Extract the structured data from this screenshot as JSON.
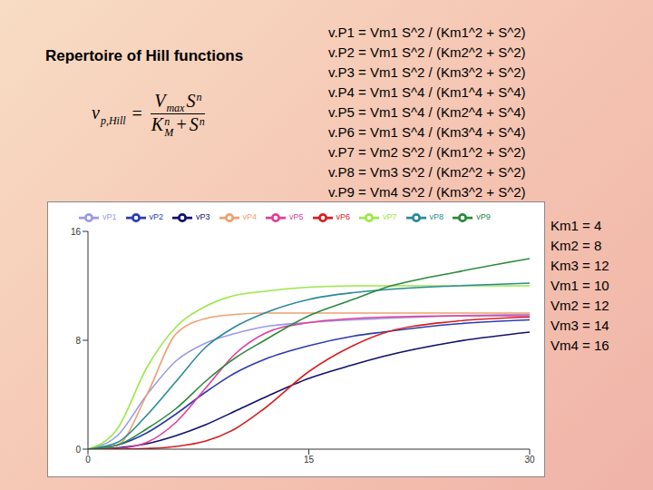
{
  "title": "Repertoire of Hill functions",
  "formula": {
    "lhs": {
      "t": "v",
      "sub": "p,Hill"
    },
    "relation": "=",
    "numerator": [
      {
        "t": "V",
        "sub": "max"
      },
      {
        "t": "S",
        "sup": "n"
      }
    ],
    "denominator": [
      {
        "t": "K",
        "sub": "M",
        "sup": "n"
      },
      {
        "t": "+"
      },
      {
        "t": "S",
        "sup": "n"
      }
    ]
  },
  "equations": [
    "v.P1 = Vm1 S^2 / (Km1^2 + S^2)",
    "v.P2 = Vm1 S^2 / (Km2^2 + S^2)",
    "v.P3 = Vm1 S^2 / (Km3^2 + S^2)",
    "v.P4 = Vm1 S^4 / (Km1^4 + S^4)",
    "v.P5 = Vm1 S^4 / (Km2^4 + S^4)",
    "v.P6 = Vm1 S^4 / (Km3^4 + S^4)",
    "v.P7 = Vm2 S^2 / (Km1^2 + S^2)",
    "v.P8 = Vm3 S^2 / (Km2^2 + S^2)",
    "v.P9 = Vm4 S^2 / (Km3^2 + S^2)"
  ],
  "parameters": [
    "Km1 = 4",
    "Km2 = 8",
    "Km3 = 12",
    "Vm1 = 10",
    "Vm2 = 12",
    "Vm3 = 14",
    "Vm4 = 16"
  ],
  "chart_data": {
    "type": "line",
    "x": [
      0,
      2,
      4,
      6,
      8,
      10,
      12,
      15,
      18,
      20,
      25,
      30
    ],
    "xlim": [
      0,
      30
    ],
    "xticks": [
      0,
      15,
      30
    ],
    "ylim": [
      0,
      16
    ],
    "yticks": [
      0,
      8,
      16
    ],
    "grid": false,
    "legend": "top",
    "series": [
      {
        "name": "vP1",
        "color": "#9a9ae8",
        "values": [
          0,
          1,
          4,
          6.5,
          7.8,
          8.5,
          9,
          9.3,
          9.5,
          9.6,
          9.8,
          9.9
        ]
      },
      {
        "name": "vP2",
        "color": "#2a3cb0",
        "values": [
          0,
          0.3,
          1.2,
          2.6,
          4.2,
          5.6,
          6.6,
          7.6,
          8.3,
          8.6,
          9.2,
          9.5
        ]
      },
      {
        "name": "vP3",
        "color": "#10106e",
        "values": [
          0,
          0.1,
          0.4,
          1,
          1.8,
          2.8,
          3.8,
          5.2,
          6.2,
          6.8,
          7.9,
          8.6
        ]
      },
      {
        "name": "vP4",
        "color": "#f0a070",
        "values": [
          0,
          0.3,
          4,
          8.5,
          9.6,
          9.9,
          10,
          10,
          10,
          10,
          10,
          10
        ]
      },
      {
        "name": "vP5",
        "color": "#e0409a",
        "values": [
          0,
          0.05,
          0.5,
          2,
          4.5,
          7,
          8.5,
          9.3,
          9.6,
          9.7,
          9.8,
          9.8
        ]
      },
      {
        "name": "vP6",
        "color": "#d82020",
        "values": [
          0,
          0,
          0.05,
          0.2,
          0.6,
          1.5,
          3,
          5.7,
          7.6,
          8.5,
          9.4,
          9.7
        ]
      },
      {
        "name": "vP7",
        "color": "#9be84a",
        "values": [
          0,
          1.5,
          6,
          9,
          10.5,
          11.3,
          11.6,
          11.9,
          12,
          12,
          12,
          12
        ]
      },
      {
        "name": "vP8",
        "color": "#2a8a9a",
        "values": [
          0,
          0.5,
          2.5,
          5,
          7.5,
          9,
          10,
          11,
          11.5,
          11.7,
          12,
          12.2
        ]
      },
      {
        "name": "vP9",
        "color": "#2a8a3a",
        "values": [
          0,
          0.3,
          1.5,
          3,
          5,
          6.7,
          8,
          9.8,
          11,
          11.8,
          13,
          14
        ]
      }
    ]
  }
}
